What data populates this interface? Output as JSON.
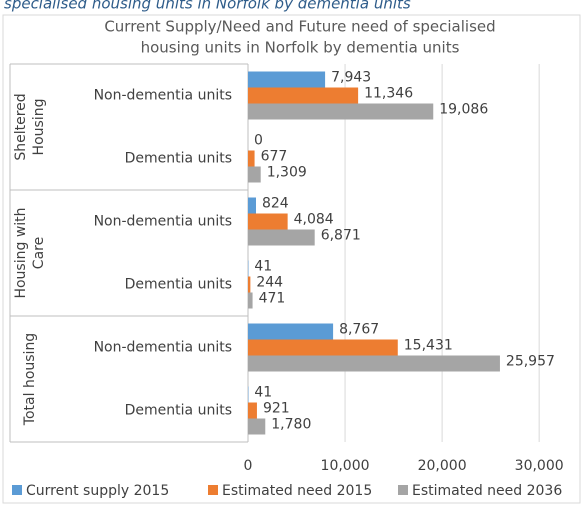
{
  "caption": "specialised housing units in Norfolk by dementia units",
  "chart_data": {
    "type": "bar",
    "orientation": "horizontal",
    "title": [
      "Current Supply/Need and Future need of specialised",
      "housing units in Norfolk by dementia units"
    ],
    "groups": [
      "Sheltered Housing",
      "Housing with Care",
      "Total housing"
    ],
    "categories": [
      "Non-dementia units",
      "Dementia units",
      "Non-dementia units",
      "Dementia units",
      "Non-dementia units",
      "Dementia units"
    ],
    "series": [
      {
        "name": "Current supply 2015",
        "color": "#5b9bd5",
        "values": [
          7943,
          0,
          824,
          41,
          8767,
          41
        ],
        "value_labels": [
          "7,943",
          "0",
          "824",
          "41",
          "8,767",
          "41"
        ]
      },
      {
        "name": "Estimated need 2015",
        "color": "#ed7d31",
        "values": [
          11346,
          677,
          4084,
          244,
          15431,
          921
        ],
        "value_labels": [
          "11,346",
          "677",
          "4,084",
          "244",
          "15,431",
          "921"
        ]
      },
      {
        "name": "Estimated need 2036",
        "color": "#a5a5a5",
        "values": [
          19086,
          1309,
          6871,
          471,
          25957,
          1780
        ],
        "value_labels": [
          "19,086",
          "1,309",
          "6,871",
          "471",
          "25,957",
          "1,780"
        ]
      }
    ],
    "xlim": [
      0,
      34000
    ],
    "xticks": [
      0,
      {
        "value": 10000,
        "label": "10,000"
      },
      {
        "value": 20000,
        "label": "20,000"
      },
      {
        "value": 30000,
        "label": "30,000"
      }
    ],
    "grid": true,
    "legend": "bottom"
  }
}
